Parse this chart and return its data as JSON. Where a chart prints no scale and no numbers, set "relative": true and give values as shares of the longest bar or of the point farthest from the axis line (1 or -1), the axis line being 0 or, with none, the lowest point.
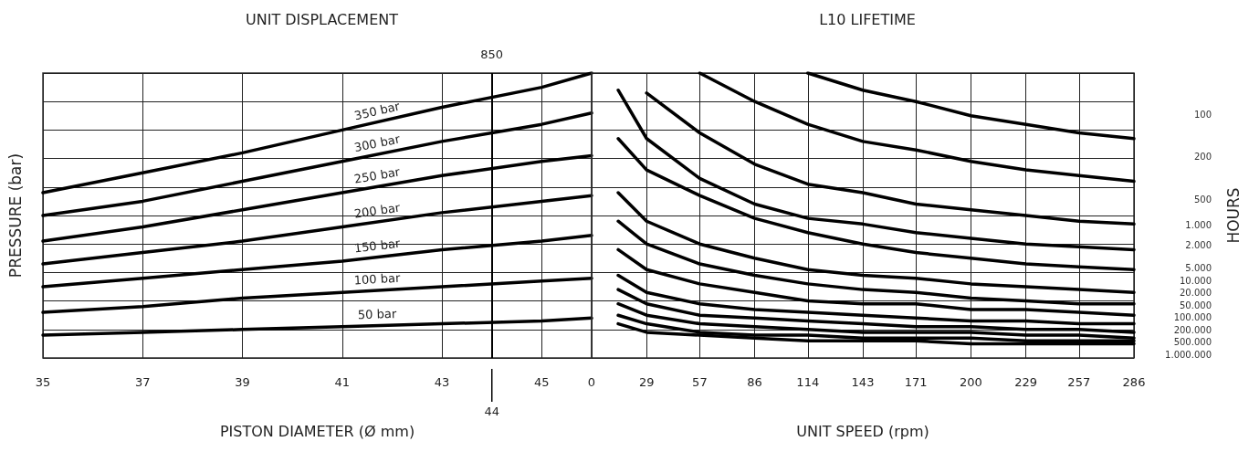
{
  "chart_data": [
    {
      "type": "line",
      "title": "UNIT DISPLACEMENT",
      "xlabel": "PISTON DIAMETER (Ø mm)",
      "ylabel": "PRESSURE (bar)",
      "relative": true,
      "grid": true,
      "legend": false,
      "marker": "none",
      "line_style": "solid",
      "x": [
        35,
        37,
        39,
        41,
        43,
        45,
        46
      ],
      "xlim": [
        35,
        46
      ],
      "xticks": [
        35,
        37,
        39,
        41,
        43,
        45
      ],
      "ref_lines": [
        {
          "axis": "x",
          "value": 44,
          "color": "#000000"
        }
      ],
      "annotations": [
        "850",
        "44"
      ],
      "series": [
        {
          "name": "350 bar",
          "color": "#000000",
          "values": [
            0.58,
            0.65,
            0.72,
            0.8,
            0.88,
            0.95,
            1.0
          ]
        },
        {
          "name": "300 bar",
          "color": "#000000",
          "values": [
            0.5,
            0.55,
            0.62,
            0.69,
            0.76,
            0.82,
            0.86
          ]
        },
        {
          "name": "250 bar",
          "color": "#000000",
          "values": [
            0.41,
            0.46,
            0.52,
            0.58,
            0.64,
            0.69,
            0.71
          ]
        },
        {
          "name": "200 bar",
          "color": "#000000",
          "values": [
            0.33,
            0.37,
            0.41,
            0.46,
            0.51,
            0.55,
            0.57
          ]
        },
        {
          "name": "150 bar",
          "color": "#000000",
          "values": [
            0.25,
            0.28,
            0.31,
            0.34,
            0.38,
            0.41,
            0.43
          ]
        },
        {
          "name": "100 bar",
          "color": "#000000",
          "values": [
            0.16,
            0.18,
            0.21,
            0.23,
            0.25,
            0.27,
            0.28
          ]
        },
        {
          "name": "50 bar",
          "color": "#000000",
          "values": [
            0.08,
            0.09,
            0.1,
            0.11,
            0.12,
            0.13,
            0.14
          ]
        }
      ]
    },
    {
      "type": "line",
      "title": "L10 LIFETIME",
      "xlabel": "UNIT SPEED (rpm)",
      "y2label": "HOURS",
      "relative": true,
      "grid": true,
      "legend": false,
      "marker": "none",
      "line_style": "solid",
      "x": [
        14,
        29,
        57,
        86,
        114,
        143,
        171,
        200,
        229,
        257,
        286
      ],
      "xlim": [
        0,
        286
      ],
      "xticks": [
        0,
        29,
        57,
        86,
        114,
        143,
        171,
        200,
        229,
        257,
        286
      ],
      "series": [
        {
          "name": "100",
          "color": "#000000",
          "values": [
            null,
            null,
            null,
            null,
            1.0,
            0.94,
            0.9,
            0.85,
            0.82,
            0.79,
            0.77
          ]
        },
        {
          "name": "200",
          "color": "#000000",
          "values": [
            null,
            null,
            1.0,
            0.9,
            0.82,
            0.76,
            0.73,
            0.69,
            0.66,
            0.64,
            0.62
          ]
        },
        {
          "name": "500",
          "color": "#000000",
          "values": [
            null,
            0.93,
            0.79,
            0.68,
            0.61,
            0.58,
            0.54,
            0.52,
            0.5,
            0.48,
            0.47
          ]
        },
        {
          "name": "1.000",
          "color": "#000000",
          "values": [
            0.94,
            0.77,
            0.63,
            0.54,
            0.49,
            0.47,
            0.44,
            0.42,
            0.4,
            0.39,
            0.38
          ]
        },
        {
          "name": "2.000",
          "color": "#000000",
          "values": [
            0.77,
            0.66,
            0.57,
            0.49,
            0.44,
            0.4,
            0.37,
            0.35,
            0.33,
            0.32,
            0.31
          ]
        },
        {
          "name": "5.000",
          "color": "#000000",
          "values": [
            0.58,
            0.48,
            0.4,
            0.35,
            0.31,
            0.29,
            0.28,
            0.26,
            0.25,
            0.24,
            0.23
          ]
        },
        {
          "name": "10.000",
          "color": "#000000",
          "values": [
            0.48,
            0.4,
            0.33,
            0.29,
            0.26,
            0.24,
            0.23,
            0.21,
            0.2,
            0.19,
            0.19
          ]
        },
        {
          "name": "20.000",
          "color": "#000000",
          "values": [
            0.38,
            0.31,
            0.26,
            0.23,
            0.2,
            0.19,
            0.19,
            0.17,
            0.17,
            0.16,
            0.15
          ]
        },
        {
          "name": "50.000",
          "color": "#000000",
          "values": [
            0.29,
            0.23,
            0.19,
            0.17,
            0.16,
            0.15,
            0.14,
            0.13,
            0.13,
            0.12,
            0.12
          ]
        },
        {
          "name": "100.000",
          "color": "#000000",
          "values": [
            0.24,
            0.19,
            0.15,
            0.14,
            0.13,
            0.12,
            0.11,
            0.11,
            0.1,
            0.1,
            0.09
          ]
        },
        {
          "name": "200.000",
          "color": "#000000",
          "values": [
            0.19,
            0.15,
            0.12,
            0.11,
            0.1,
            0.09,
            0.09,
            0.09,
            0.08,
            0.08,
            0.07
          ]
        },
        {
          "name": "500.000",
          "color": "#000000",
          "values": [
            0.15,
            0.12,
            0.09,
            0.08,
            0.08,
            0.07,
            0.07,
            0.07,
            0.06,
            0.06,
            0.06
          ]
        },
        {
          "name": "1.000.000",
          "color": "#000000",
          "values": [
            0.12,
            0.09,
            0.08,
            0.07,
            0.06,
            0.06,
            0.06,
            0.05,
            0.05,
            0.05,
            0.05
          ]
        }
      ]
    }
  ]
}
